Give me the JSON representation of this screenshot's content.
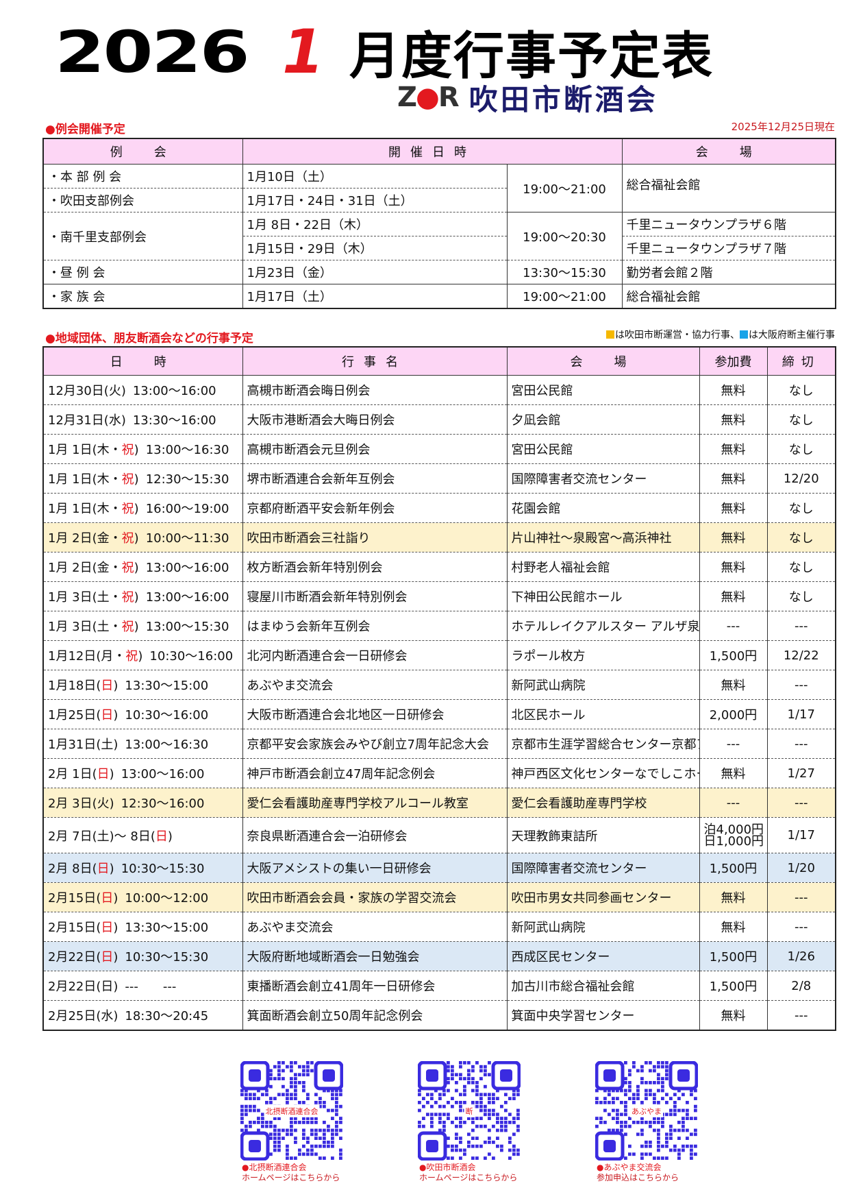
{
  "header": {
    "year": "2026",
    "month": "1",
    "title_rest": "月度行事予定表",
    "org_logo": "ZDR",
    "org_name": "吹田市断酒会"
  },
  "regular": {
    "section_label": "●例会開催予定",
    "as_of": "2025年12月25日現在",
    "columns": [
      "例　会",
      "開催日時",
      "会　場"
    ],
    "rows": [
      {
        "name": "・本 部 例 会",
        "date": "1月10日（土）"
      },
      {
        "name": "・吹田支部例会",
        "date": "1月17日・24日・31日（土）"
      },
      {
        "name": "・南千里支部例会",
        "date": "1月 8日・22日（木）",
        "venue": "千里ニュータウンプラザ６階"
      },
      {
        "date": "1月15日・29日（木）",
        "venue": "千里ニュータウンプラザ７階"
      },
      {
        "name": "・昼 例 会",
        "date": "1月23日（金）",
        "time": "13:30～15:30",
        "venue": "勤労者会館２階"
      },
      {
        "name": "・家 族 会",
        "date": "1月17日（土）",
        "time": "19:00～21:00",
        "venue": "総合福祉会館"
      }
    ],
    "group1_time": "19:00～21:00",
    "group1_venue": "総合福祉会館",
    "group2_time": "19:00～20:30"
  },
  "events": {
    "section_label": "●地域団体、朋友断酒会などの行事予定",
    "legend": {
      "yellow_text": "は吹田市断運営・協力行事、",
      "blue_text": "は大阪府断主催行事",
      "yellow_color": "#f5b800",
      "blue_color": "#1aa3e8"
    },
    "columns": [
      "日　時",
      "行事名",
      "会　場",
      "参加費",
      "締切"
    ],
    "rows": [
      {
        "pre": "12月30日(火)",
        "red": "",
        "post": "",
        "time": "13:00～16:00",
        "name": "高槻市断酒会晦日例会",
        "venue": "宮田公民館",
        "fee": "無料",
        "deadline": "なし",
        "hl": ""
      },
      {
        "pre": "12月31日(水)",
        "red": "",
        "post": "",
        "time": "13:30～16:00",
        "name": "大阪市港断酒会大晦日例会",
        "venue": "夕凪会館",
        "fee": "無料",
        "deadline": "なし",
        "hl": ""
      },
      {
        "pre": "1月 1日(木・",
        "red": "祝",
        "post": ")",
        "time": "13:00～16:30",
        "name": "高槻市断酒会元旦例会",
        "venue": "宮田公民館",
        "fee": "無料",
        "deadline": "なし",
        "hl": ""
      },
      {
        "pre": "1月 1日(木・",
        "red": "祝",
        "post": ")",
        "time": "12:30～15:30",
        "name": "堺市断酒連合会新年互例会",
        "venue": "国際障害者交流センター",
        "fee": "無料",
        "deadline": "12/20",
        "hl": ""
      },
      {
        "pre": "1月 1日(木・",
        "red": "祝",
        "post": ")",
        "time": "16:00～19:00",
        "name": "京都府断酒平安会新年例会",
        "venue": "花園会館",
        "fee": "無料",
        "deadline": "なし",
        "hl": ""
      },
      {
        "pre": "1月 2日(金・",
        "red": "祝",
        "post": ")",
        "time": "10:00～11:30",
        "name": "吹田市断酒会三社詣り",
        "venue": "片山神社～泉殿宮～高浜神社",
        "fee": "無料",
        "deadline": "なし",
        "hl": "yellow"
      },
      {
        "pre": "1月 2日(金・",
        "red": "祝",
        "post": ")",
        "time": "13:00～16:00",
        "name": "枚方断酒会新年特別例会",
        "venue": "村野老人福祉会館",
        "fee": "無料",
        "deadline": "なし",
        "hl": ""
      },
      {
        "pre": "1月 3日(土・",
        "red": "祝",
        "post": ")",
        "time": "13:00～16:00",
        "name": "寝屋川市断酒会新年特別例会",
        "venue": "下神田公民館ホール",
        "fee": "無料",
        "deadline": "なし",
        "hl": ""
      },
      {
        "pre": "1月 3日(土・",
        "red": "祝",
        "post": ")",
        "time": "13:00～15:30",
        "name": "はまゆう会新年互例会",
        "venue": "ホテルレイクアルスター アルザ泉大津",
        "fee": "---",
        "deadline": "---",
        "hl": "",
        "small": true
      },
      {
        "pre": "1月12日(月・",
        "red": "祝",
        "post": ")",
        "time": "10:30～16:00",
        "name": "北河内断酒連合会一日研修会",
        "venue": "ラポール枚方",
        "fee": "1,500円",
        "deadline": "12/22",
        "hl": ""
      },
      {
        "pre": "1月18日(",
        "red": "日",
        "post": ")",
        "time": "13:30～15:00",
        "name": "あぶやま交流会",
        "venue": "新阿武山病院",
        "fee": "無料",
        "deadline": "---",
        "hl": ""
      },
      {
        "pre": "1月25日(",
        "red": "日",
        "post": ")",
        "time": "10:30～16:00",
        "name": "大阪市断酒連合会北地区一日研修会",
        "venue": "北区民ホール",
        "fee": "2,000円",
        "deadline": "1/17",
        "hl": ""
      },
      {
        "pre": "1月31日(土)",
        "red": "",
        "post": "",
        "time": "13:00～16:30",
        "name": "京都平安会家族会みやび創立7周年記念大会",
        "venue": "京都市生涯学習総合センター京都アスニー",
        "fee": "---",
        "deadline": "---",
        "hl": "",
        "small": true
      },
      {
        "pre": "2月 1日(",
        "red": "日",
        "post": ")",
        "time": "13:00～16:00",
        "name": "神戸市断酒会創立47周年記念例会",
        "venue": "神戸西区文化センターなでしこホール",
        "fee": "無料",
        "deadline": "1/27",
        "hl": "",
        "small": true
      },
      {
        "pre": "2月 3日(火)",
        "red": "",
        "post": "",
        "time": "12:30～16:00",
        "name": "愛仁会看護助産専門学校アルコール教室",
        "venue": "愛仁会看護助産専門学校",
        "fee": "---",
        "deadline": "---",
        "hl": "yellow"
      },
      {
        "pre": "2月 7日(土)～ 8日(",
        "red": "日",
        "post": ")",
        "time": "",
        "name": "奈良県断酒連合会一泊研修会",
        "venue": "天理教飾東詰所",
        "fee": "泊4,000円",
        "fee2": "日1,000円",
        "deadline": "1/17",
        "hl": "",
        "tall": true
      },
      {
        "pre": "2月 8日(",
        "red": "日",
        "post": ")",
        "time": "10:30～15:30",
        "name": "大阪アメシストの集い一日研修会",
        "venue": "国際障害者交流センター",
        "fee": "1,500円",
        "deadline": "1/20",
        "hl": "blue"
      },
      {
        "pre": "2月15日(",
        "red": "日",
        "post": ")",
        "time": "10:00～12:00",
        "name": "吹田市断酒会会員・家族の学習交流会",
        "venue": "吹田市男女共同参画センター",
        "fee": "無料",
        "deadline": "---",
        "hl": "yellow"
      },
      {
        "pre": "2月15日(",
        "red": "日",
        "post": ")",
        "time": "13:30～15:00",
        "name": "あぶやま交流会",
        "venue": "新阿武山病院",
        "fee": "無料",
        "deadline": "---",
        "hl": ""
      },
      {
        "pre": "2月22日(",
        "red": "日",
        "post": ")",
        "time": "10:30～15:30",
        "name": "大阪府断地域断酒会一日勉強会",
        "venue": "西成区民センター",
        "fee": "1,500円",
        "deadline": "1/26",
        "hl": "blue"
      },
      {
        "pre": "2月22日(日)",
        "red": "",
        "post": "",
        "time": "---　　---",
        "name": "東播断酒会創立41周年一日研修会",
        "venue": "加古川市総合福祉会館",
        "fee": "1,500円",
        "deadline": "2/8",
        "hl": ""
      },
      {
        "pre": "2月25日(水)",
        "red": "",
        "post": "",
        "time": "18:30～20:45",
        "name": "箕面断酒会創立50周年記念例会",
        "venue": "箕面中央学習センター",
        "fee": "無料",
        "deadline": "---",
        "hl": ""
      }
    ]
  },
  "qr_codes": [
    {
      "center_label": "北摂断酒連合会",
      "caption1": "●北摂断酒連合会",
      "caption2": "ホームページはこちらから"
    },
    {
      "center_label": "断",
      "caption1": "●吹田市断酒会",
      "caption2": "ホームページはこちらから"
    },
    {
      "center_label": "あぶやま",
      "caption1": "●あぶやま交流会",
      "caption2": "参加申込はこちらから"
    }
  ],
  "colors": {
    "accent_red": "#e3191f",
    "header_pink": "#fdd6f5",
    "highlight_yellow": "#fdf2cc",
    "highlight_blue": "#dbe8f5",
    "org_navy": "#1c1c6b",
    "qr_blue": "#3a2be0"
  }
}
